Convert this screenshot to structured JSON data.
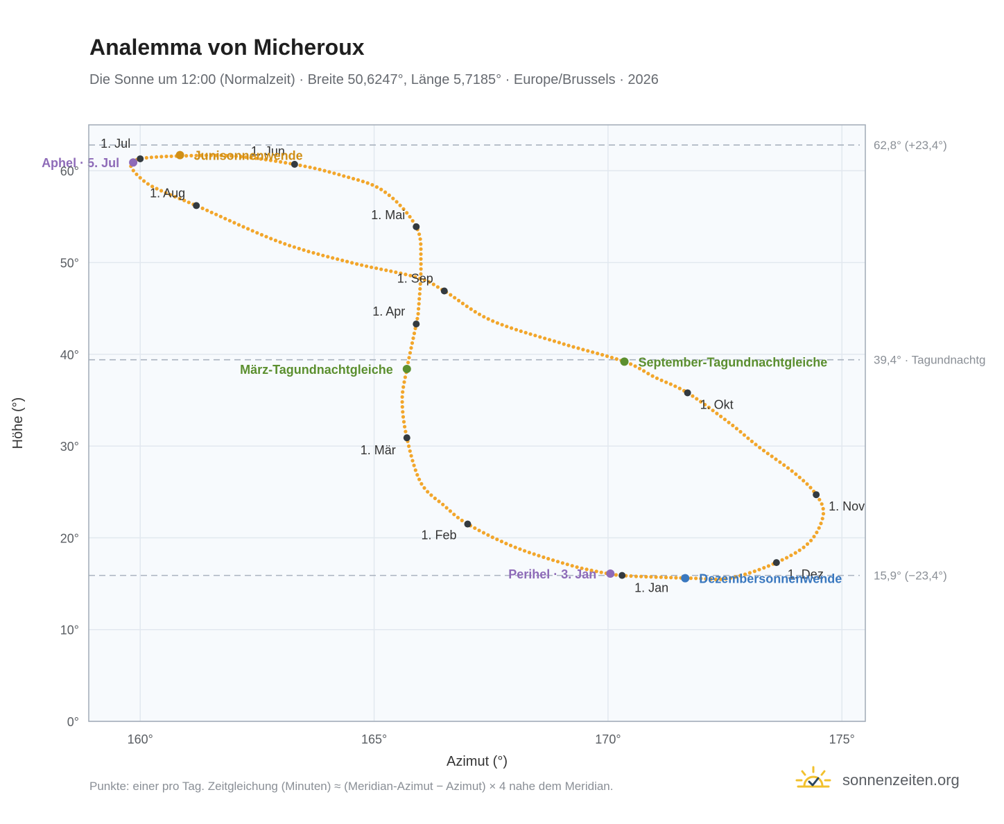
{
  "title": "Analemma von Micheroux",
  "subtitle": "Die Sonne um 12:00 (Normalzeit) · Breite 50,6247°, Länge 5,7185° · Europe/Brussels · 2026",
  "footnote": "Punkte: einer pro Tag. Zeitgleichung (Minuten) ≈ (Meridian-Azimut − Azimut) × 4 nahe dem Meridian.",
  "brand": {
    "text": "sonnenzeiten.org",
    "icon": "sun-check-icon"
  },
  "colors": {
    "analemma": "#f2a62b",
    "monthDot": "#333a40",
    "aphel": "#8e6bb8",
    "junisonnenwende": "#d08f16",
    "equinox": "#5b8f2f",
    "dezember": "#3a78bf",
    "refline": "#a9b2bf",
    "plotBg": "#f7fafd",
    "grid": "#e2e8ef"
  },
  "chart_data": {
    "type": "scatter",
    "title": "Analemma von Micheroux",
    "xlabel": "Azimut (°)",
    "ylabel": "Höhe (°)",
    "xlim": [
      158.9,
      175.5
    ],
    "ylim": [
      0,
      65
    ],
    "xticks": [
      160,
      165,
      170,
      175
    ],
    "yticks": [
      0,
      10,
      20,
      30,
      40,
      50,
      60
    ],
    "xtick_labels": [
      "160°",
      "165°",
      "170°",
      "175°"
    ],
    "ytick_labels": [
      "0°",
      "10°",
      "20°",
      "30°",
      "40°",
      "50°",
      "60°"
    ],
    "grid": true,
    "analemma_path": [
      [
        170.6,
        15.8
      ],
      [
        171.8,
        15.6
      ],
      [
        172.6,
        15.6
      ],
      [
        173.6,
        17.3
      ],
      [
        174.3,
        19.5
      ],
      [
        174.6,
        22.5
      ],
      [
        174.45,
        24.7
      ],
      [
        174.0,
        27.0
      ],
      [
        173.2,
        30.0
      ],
      [
        172.6,
        32.5
      ],
      [
        171.7,
        35.8
      ],
      [
        171.0,
        37.5
      ],
      [
        170.35,
        39.2
      ],
      [
        169.0,
        41.2
      ],
      [
        167.5,
        43.7
      ],
      [
        166.5,
        46.9
      ],
      [
        165.9,
        48.4
      ],
      [
        164.5,
        50.0
      ],
      [
        163.0,
        52.2
      ],
      [
        161.2,
        56.2
      ],
      [
        160.5,
        57.7
      ],
      [
        160.1,
        58.8
      ],
      [
        159.8,
        60.5
      ],
      [
        160.0,
        61.3
      ],
      [
        160.8,
        61.6
      ],
      [
        162.0,
        61.6
      ],
      [
        163.3,
        60.7
      ],
      [
        164.3,
        59.5
      ],
      [
        165.2,
        57.8
      ],
      [
        165.9,
        53.9
      ],
      [
        166.0,
        50.0
      ],
      [
        165.95,
        45.0
      ],
      [
        165.9,
        43.3
      ],
      [
        165.7,
        38.4
      ],
      [
        165.6,
        35.0
      ],
      [
        165.7,
        30.9
      ],
      [
        166.0,
        26.0
      ],
      [
        166.5,
        23.5
      ],
      [
        167.0,
        21.5
      ],
      [
        168.0,
        19.0
      ],
      [
        169.2,
        17.0
      ],
      [
        170.0,
        16.1
      ],
      [
        170.3,
        15.9
      ],
      [
        170.6,
        15.8
      ]
    ],
    "months": [
      {
        "label": "1. Jan",
        "az": 170.3,
        "alt": 15.9
      },
      {
        "label": "1. Feb",
        "az": 167.0,
        "alt": 21.5
      },
      {
        "label": "1. Mär",
        "az": 165.7,
        "alt": 30.9
      },
      {
        "label": "1. Apr",
        "az": 165.9,
        "alt": 43.3
      },
      {
        "label": "1. Mai",
        "az": 165.9,
        "alt": 53.9
      },
      {
        "label": "1. Jun",
        "az": 163.3,
        "alt": 60.7
      },
      {
        "label": "1. Jul",
        "az": 160.0,
        "alt": 61.3
      },
      {
        "label": "1. Aug",
        "az": 161.2,
        "alt": 56.2
      },
      {
        "label": "1. Sep",
        "az": 166.5,
        "alt": 46.9
      },
      {
        "label": "1. Okt",
        "az": 171.7,
        "alt": 35.8
      },
      {
        "label": "1. Nov",
        "az": 174.45,
        "alt": 24.7
      },
      {
        "label": "1. Dez",
        "az": 173.6,
        "alt": 17.3
      }
    ],
    "events": [
      {
        "label": "Aphel · 5. Jul",
        "az": 159.85,
        "alt": 60.9,
        "color": "#8e6bb8",
        "anchor": "end"
      },
      {
        "label": "Junisonnenwende",
        "az": 160.85,
        "alt": 61.7,
        "color": "#d08f16",
        "anchor": "start"
      },
      {
        "label": "März-Tagundnachtgleiche",
        "az": 165.7,
        "alt": 38.4,
        "color": "#5b8f2f",
        "anchor": "end"
      },
      {
        "label": "September-Tagundnachtgleiche",
        "az": 170.35,
        "alt": 39.2,
        "color": "#5b8f2f",
        "anchor": "start"
      },
      {
        "label": "Perihel · 3. Jan",
        "az": 170.05,
        "alt": 16.1,
        "color": "#8e6bb8",
        "anchor": "end"
      },
      {
        "label": "Dezembersonnenwende",
        "az": 171.65,
        "alt": 15.6,
        "color": "#3a78bf",
        "anchor": "start"
      }
    ],
    "reference_lines": [
      {
        "alt": 62.8,
        "label": "62,8° (+23,4°)"
      },
      {
        "alt": 39.4,
        "label": "39,4° · Tagundnachtg"
      },
      {
        "alt": 15.9,
        "label": "15,9° (−23,4°)"
      }
    ]
  }
}
